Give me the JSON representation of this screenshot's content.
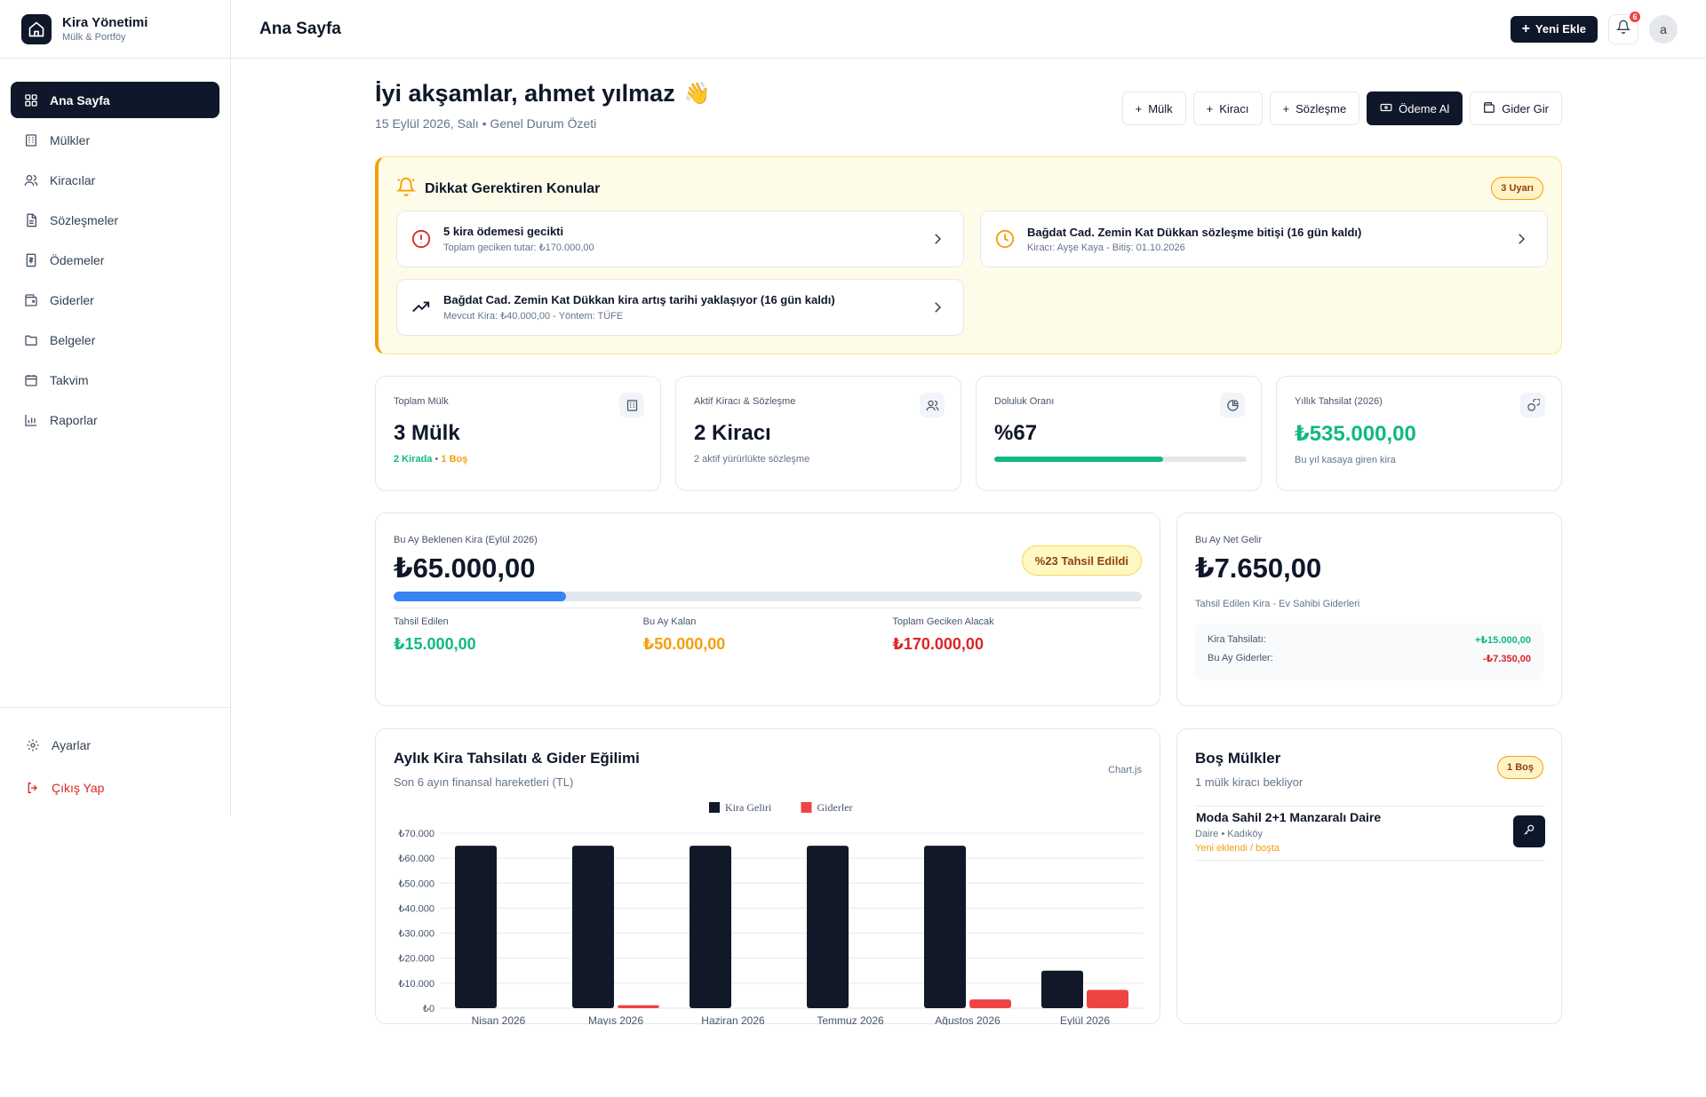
{
  "brand": {
    "title": "Kira Yönetimi",
    "subtitle": "Mülk & Portföy"
  },
  "sidebar": {
    "items": [
      {
        "label": "Ana Sayfa",
        "icon": "grid-icon",
        "active": true
      },
      {
        "label": "Mülkler",
        "icon": "building-icon"
      },
      {
        "label": "Kiracılar",
        "icon": "users-icon"
      },
      {
        "label": "Sözleşmeler",
        "icon": "document-icon"
      },
      {
        "label": "Ödemeler",
        "icon": "receipt-icon"
      },
      {
        "label": "Giderler",
        "icon": "wallet-icon"
      },
      {
        "label": "Belgeler",
        "icon": "folder-icon"
      },
      {
        "label": "Takvim",
        "icon": "calendar-icon"
      },
      {
        "label": "Raporlar",
        "icon": "bar-chart-icon"
      }
    ],
    "settings_label": "Ayarlar",
    "logout_label": "Çıkış Yap"
  },
  "header": {
    "title": "Ana Sayfa",
    "new_button": "Yeni Ekle",
    "notification_count": "6",
    "avatar_initial": "a"
  },
  "greeting": {
    "title": "İyi akşamlar, ahmet yılmaz",
    "emoji": "👋",
    "subtitle": "15 Eylül 2026, Salı • Genel Durum Özeti"
  },
  "quick_actions": {
    "property": "Mülk",
    "tenant": "Kiracı",
    "contract": "Sözleşme",
    "payment": "Ödeme Al",
    "expense": "Gider Gir"
  },
  "alerts": {
    "title": "Dikkat Gerektiren Konular",
    "count": "3 Uyarı",
    "items": [
      {
        "title": "5 kira ödemesi gecikti",
        "sub": "Toplam geciken tutar: ₺170.000,00"
      },
      {
        "title": "Bağdat Cad. Zemin Kat Dükkan sözleşme bitişi (16 gün kaldı)",
        "sub": "Kiracı: Ayşe Kaya - Bitiş: 01.10.2026"
      },
      {
        "title": "Bağdat Cad. Zemin Kat Dükkan kira artış tarihi yaklaşıyor (16 gün kaldı)",
        "sub": "Mevcut Kira: ₺40.000,00 - Yöntem: TÜFE"
      }
    ]
  },
  "stats": {
    "properties": {
      "label": "Toplam Mülk",
      "value": "3 Mülk",
      "rented": "2 Kirada",
      "sep": "•",
      "vacant": "1 Boş"
    },
    "tenants": {
      "label": "Aktif Kiracı & Sözleşme",
      "value": "2 Kiracı",
      "sub": "2 aktif yürürlükte sözleşme"
    },
    "occupancy": {
      "label": "Doluluk Oranı",
      "value": "%67",
      "fraction": 0.67
    },
    "annual": {
      "label": "Yıllık Tahsilat (2026)",
      "value": "₺535.000,00",
      "sub": "Bu yıl kasaya giren kira"
    }
  },
  "rent": {
    "label": "Bu Ay Beklenen Kira (Eylül 2026)",
    "value": "₺65.000,00",
    "badge": "%23 Tahsil Edildi",
    "progress": 0.23,
    "collected_label": "Tahsil Edilen",
    "collected_value": "₺15.000,00",
    "remaining_label": "Bu Ay Kalan",
    "remaining_value": "₺50.000,00",
    "overdue_label": "Toplam Geciken Alacak",
    "overdue_value": "₺170.000,00",
    "colors": {
      "collected": "#10b981",
      "remaining": "#f59e0b",
      "overdue": "#dc2626"
    }
  },
  "net": {
    "label": "Bu Ay Net Gelir",
    "value": "₺7.650,00",
    "sub": "Tahsil Edilen Kira - Ev Sahibi Giderleri",
    "income_label": "Kira Tahsilatı:",
    "income_value": "+₺15.000,00",
    "expense_label": "Bu Ay Giderler:",
    "expense_value": "-₺7.350,00"
  },
  "trend": {
    "title": "Aylık Kira Tahsilatı & Gider Eğilimi",
    "subtitle": "Son 6 ayın finansal hareketleri (TL)",
    "lib": "Chart.js"
  },
  "chart_data": {
    "type": "bar",
    "categories": [
      "Nisan 2026",
      "Mayıs 2026",
      "Haziran 2026",
      "Temmuz 2026",
      "Ağustos 2026",
      "Eylül 2026"
    ],
    "series": [
      {
        "name": "Kira Geliri",
        "color": "#111827",
        "values": [
          65000,
          65000,
          65000,
          65000,
          65000,
          15000
        ]
      },
      {
        "name": "Giderler",
        "color": "#ef4444",
        "values": [
          0,
          1200,
          0,
          0,
          3500,
          7350
        ]
      }
    ],
    "yticks": [
      "₺0",
      "₺10.000",
      "₺20.000",
      "₺30.000",
      "₺40.000",
      "₺50.000",
      "₺60.000",
      "₺70.000"
    ],
    "ylim": [
      0,
      70000
    ],
    "legend": "top-center",
    "grid": true
  },
  "vacant": {
    "title": "Boş Mülkler",
    "subtitle": "1 mülk kiracı bekliyor",
    "badge": "1 Boş",
    "items": [
      {
        "name": "Moda Sahil 2+1 Manzaralı Daire",
        "meta": "Daire • Kadıköy",
        "note": "Yeni eklendi / boşta"
      }
    ]
  }
}
